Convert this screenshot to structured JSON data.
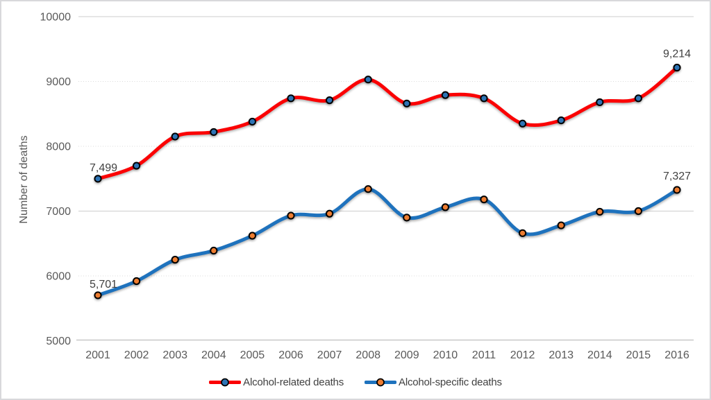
{
  "chart_data": {
    "type": "line",
    "ylabel": "Number of deaths",
    "x_categories": [
      "2001",
      "2002",
      "2003",
      "2004",
      "2005",
      "2006",
      "2007",
      "2008",
      "2009",
      "2010",
      "2011",
      "2012",
      "2013",
      "2014",
      "2015",
      "2016"
    ],
    "y_ticks": [
      "10000",
      "9000",
      "8000",
      "7000",
      "6000",
      "5000"
    ],
    "y_axis_range": [
      5000,
      10000
    ],
    "grid": {
      "solid_at": [
        10000,
        7000
      ],
      "dotted_at": [
        9000,
        8000,
        6000
      ]
    },
    "legend_position": "bottom-center",
    "series": [
      {
        "name": "Alcohol-related deaths",
        "line_color": "#fb0204",
        "marker_color": "#2e74b5",
        "marker_outline": "#000000",
        "values": [
          7499,
          7700,
          8150,
          8220,
          8380,
          8740,
          8710,
          9030,
          8660,
          8790,
          8740,
          8350,
          8400,
          8680,
          8740,
          9214
        ]
      },
      {
        "name": "Alcohol-specific deaths",
        "line_color": "#1e72bd",
        "marker_color": "#ed7d31",
        "marker_outline": "#000000",
        "values": [
          5701,
          5920,
          6250,
          6390,
          6620,
          6930,
          6960,
          7340,
          6900,
          7060,
          7180,
          6660,
          6780,
          6990,
          7000,
          7327
        ]
      }
    ],
    "point_labels": [
      {
        "series": 0,
        "index": 0,
        "text": "7,499"
      },
      {
        "series": 0,
        "index": 15,
        "text": "9,214"
      },
      {
        "series": 1,
        "index": 0,
        "text": "5,701"
      },
      {
        "series": 1,
        "index": 15,
        "text": "7,327"
      }
    ]
  },
  "colors": {
    "axis_text": "#595959",
    "data_label_text": "#404040",
    "grid_dotted": "#d9d9d9",
    "grid_solid": "#cccccc",
    "axis_line": "#bfbfbf",
    "frame_border": "#d8d8db",
    "background": "#ffffff"
  }
}
